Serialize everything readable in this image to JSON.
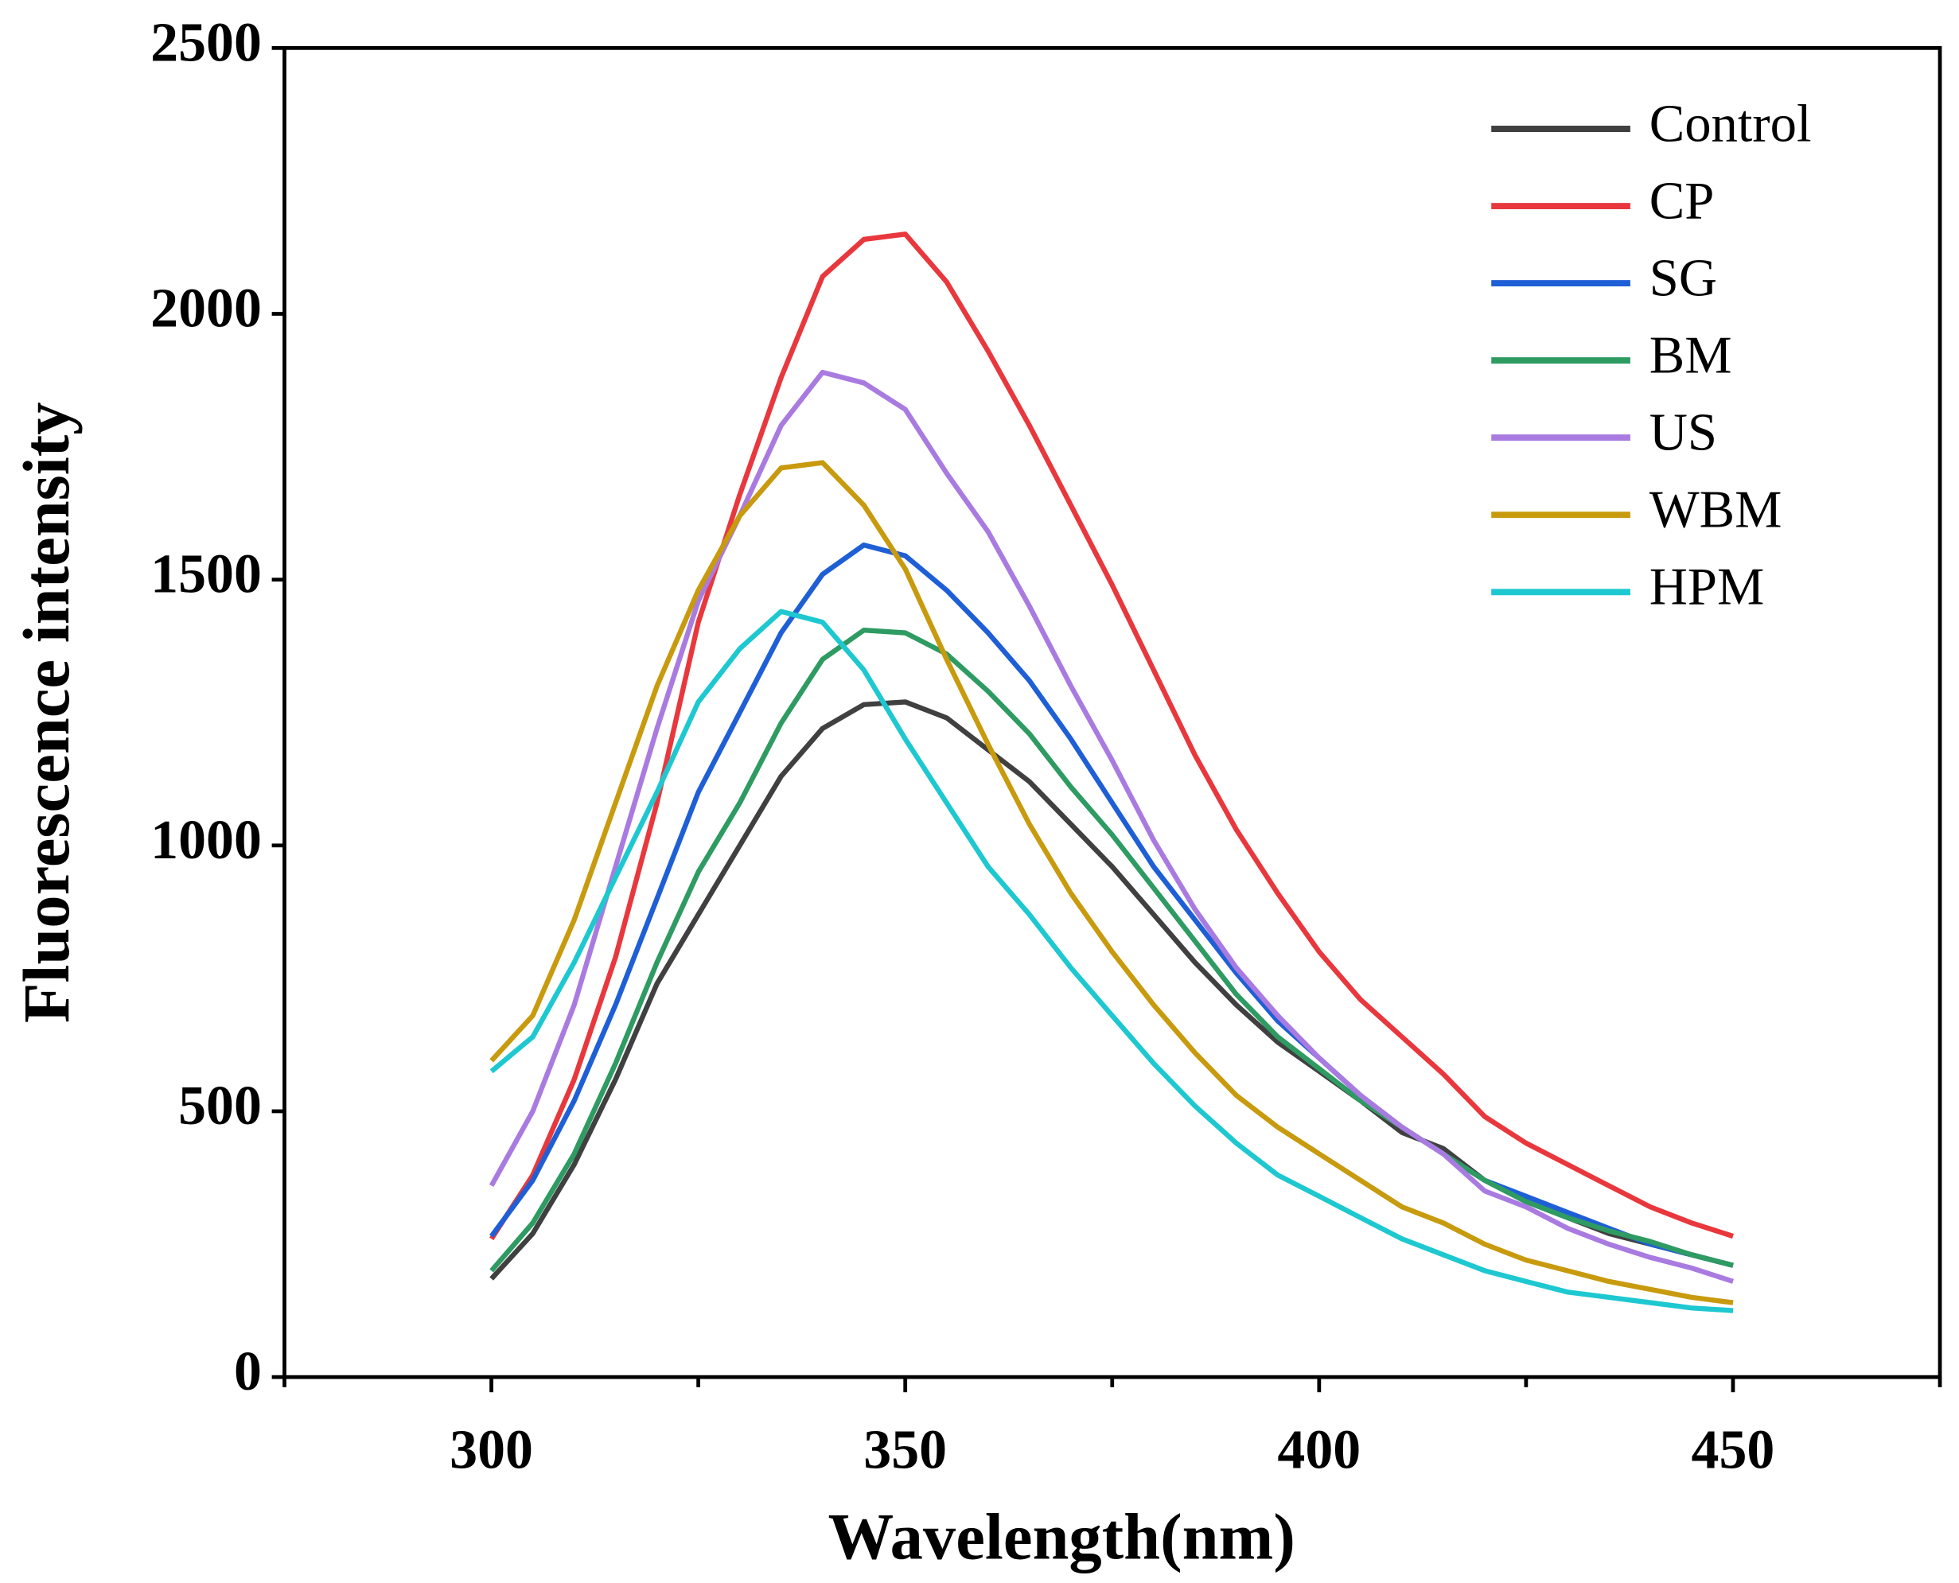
{
  "chart_data": {
    "type": "line",
    "xlabel": "Wavelength(nm)",
    "ylabel": "Fluorescence intensity",
    "x": [
      300,
      305,
      310,
      315,
      320,
      325,
      330,
      335,
      340,
      345,
      350,
      355,
      360,
      365,
      370,
      375,
      380,
      385,
      390,
      395,
      400,
      405,
      410,
      415,
      420,
      425,
      430,
      435,
      440,
      445,
      450
    ],
    "series": [
      {
        "name": "Control",
        "color": "#404040",
        "values": [
          185,
          270,
          400,
          560,
          740,
          870,
          1000,
          1130,
          1220,
          1265,
          1270,
          1240,
          1180,
          1120,
          1040,
          960,
          870,
          780,
          700,
          630,
          575,
          520,
          460,
          430,
          370,
          330,
          300,
          270,
          250,
          230,
          210
        ]
      },
      {
        "name": "CP",
        "color": "#e8383d",
        "values": [
          260,
          380,
          560,
          790,
          1080,
          1420,
          1660,
          1880,
          2070,
          2140,
          2150,
          2060,
          1930,
          1790,
          1640,
          1490,
          1330,
          1170,
          1030,
          910,
          800,
          710,
          640,
          570,
          490,
          440,
          400,
          360,
          320,
          290,
          265
        ]
      },
      {
        "name": "SG",
        "color": "#1f5fd6",
        "values": [
          265,
          370,
          520,
          700,
          900,
          1100,
          1250,
          1400,
          1510,
          1565,
          1545,
          1480,
          1400,
          1310,
          1200,
          1080,
          960,
          860,
          760,
          670,
          600,
          530,
          470,
          420,
          370,
          340,
          310,
          280,
          250,
          230,
          210
        ]
      },
      {
        "name": "BM",
        "color": "#2e9b62",
        "values": [
          200,
          290,
          420,
          590,
          780,
          950,
          1080,
          1230,
          1350,
          1405,
          1400,
          1360,
          1290,
          1210,
          1110,
          1020,
          920,
          820,
          720,
          640,
          580,
          520,
          470,
          420,
          370,
          330,
          300,
          275,
          255,
          230,
          210
        ]
      },
      {
        "name": "US",
        "color": "#a97be0",
        "values": [
          360,
          500,
          700,
          960,
          1220,
          1460,
          1620,
          1790,
          1890,
          1870,
          1820,
          1700,
          1590,
          1450,
          1300,
          1160,
          1010,
          880,
          770,
          680,
          600,
          530,
          470,
          420,
          350,
          320,
          280,
          250,
          225,
          205,
          180
        ]
      },
      {
        "name": "WBM",
        "color": "#c89a0e",
        "values": [
          595,
          680,
          860,
          1080,
          1300,
          1480,
          1620,
          1710,
          1720,
          1640,
          1520,
          1350,
          1190,
          1040,
          910,
          800,
          700,
          610,
          530,
          470,
          420,
          370,
          320,
          290,
          250,
          220,
          200,
          180,
          165,
          150,
          140
        ]
      },
      {
        "name": "HPM",
        "color": "#1ec8d0",
        "values": [
          575,
          640,
          780,
          940,
          1100,
          1270,
          1370,
          1440,
          1420,
          1330,
          1200,
          1080,
          960,
          870,
          770,
          680,
          590,
          510,
          440,
          380,
          340,
          300,
          260,
          230,
          200,
          180,
          160,
          150,
          140,
          130,
          125
        ]
      }
    ],
    "xlim": [
      275,
      475
    ],
    "xticks": [
      300,
      350,
      400,
      450
    ],
    "xminorticks": [
      275,
      325,
      375,
      425,
      475
    ],
    "ylim": [
      0,
      2500
    ],
    "yticks": [
      0,
      500,
      1000,
      1500,
      2000,
      2500
    ],
    "legend": "upper right",
    "grid": false
  }
}
